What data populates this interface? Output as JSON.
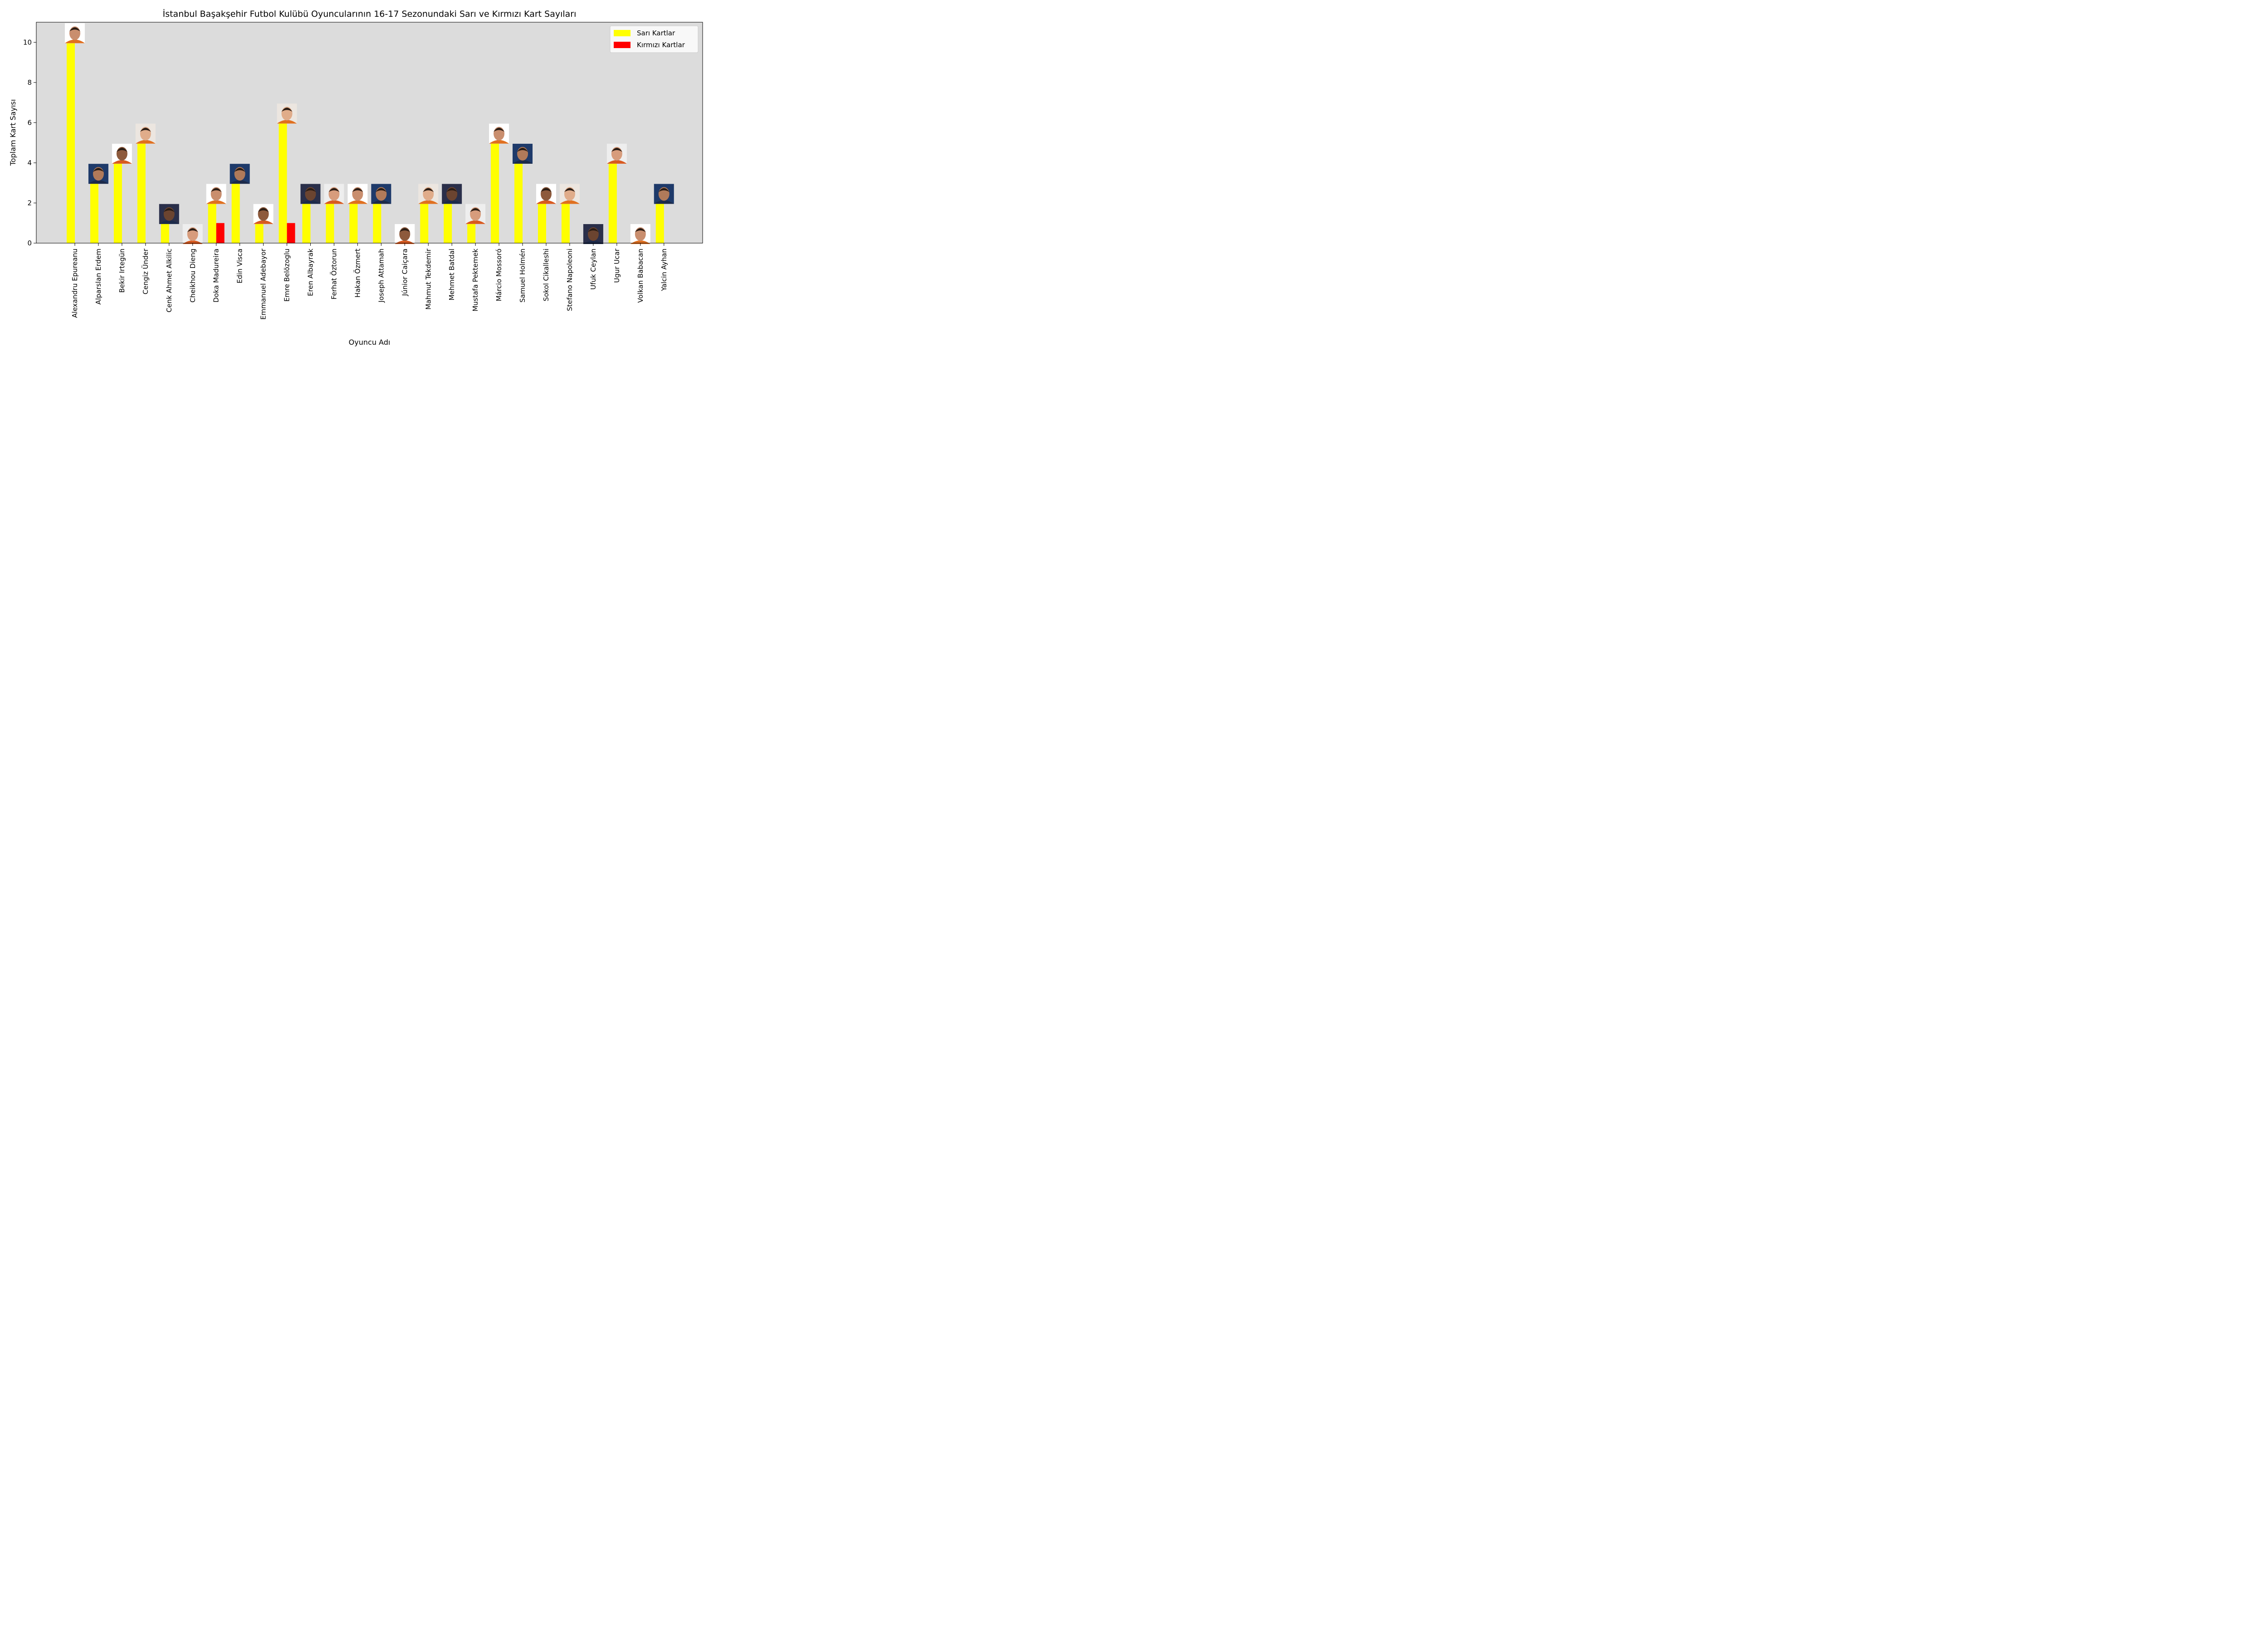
{
  "chart_data": {
    "type": "bar",
    "title": "İstanbul Başakşehir Futbol Kulübü Oyuncularının 16-17 Sezonundaki Sarı ve Kırmızı Kart Sayıları",
    "xlabel": "Oyuncu Adı",
    "ylabel": "Toplam Kart Sayısı",
    "ylim": [
      0,
      11
    ],
    "yticks": [
      0,
      2,
      4,
      6,
      8,
      10
    ],
    "grid": false,
    "background_color": "#dcdcdc",
    "legend_position": "top-right",
    "categories": [
      "Alexandru Epureanu",
      "Alparslan Erdem",
      "Bekir Irtegün",
      "Cengiz Ünder",
      "Cenk Ahmet Alkilic",
      "Cheikhou Dieng",
      "Doka Madureira",
      "Edin Visca",
      "Emmanuel Adebayor",
      "Emre Belözoglu",
      "Eren Albayrak",
      "Ferhat Öztorun",
      "Hakan Özmert",
      "Joseph Attamah",
      "Júnior Caiçara",
      "Mahmut Tekdemir",
      "Mehmet Batdal",
      "Mustafa Pektemek",
      "Márcio Mossoró",
      "Samuel Holmén",
      "Sokol Cikalleshi",
      "Stefano Napoleoni",
      "Ufuk Ceylan",
      "Ugur Ucar",
      "Volkan Babacan",
      "Yalcin Ayhan"
    ],
    "series": [
      {
        "name": "Sarı Kartlar",
        "color": "#ffff00",
        "values": [
          10,
          3,
          4,
          5,
          1,
          0,
          2,
          3,
          1,
          6,
          2,
          2,
          2,
          2,
          0,
          2,
          2,
          1,
          5,
          4,
          2,
          2,
          0,
          4,
          0,
          2
        ]
      },
      {
        "name": "Kırmızı Kartlar",
        "color": "#ff0000",
        "values": [
          0,
          0,
          0,
          0,
          0,
          0,
          1,
          0,
          0,
          1,
          0,
          0,
          0,
          0,
          0,
          0,
          0,
          0,
          0,
          0,
          0,
          0,
          0,
          0,
          0,
          0
        ]
      }
    ],
    "player_photo_icon": "player-portrait-icon"
  }
}
